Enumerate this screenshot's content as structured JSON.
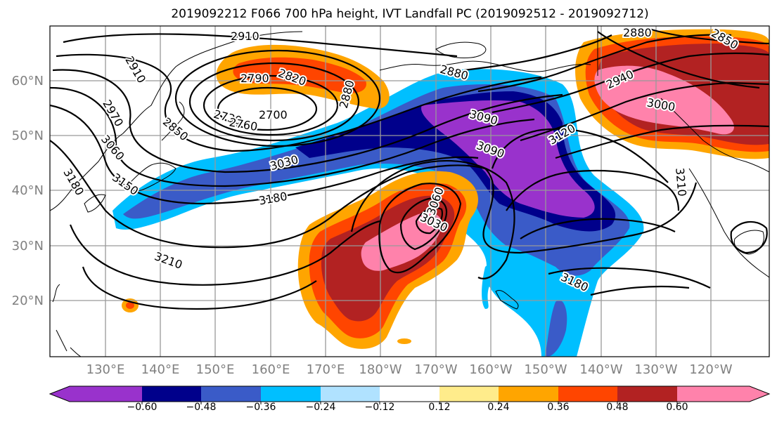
{
  "title": "2019092212 F066 700 hPa height, IVT Landfall PC (2019092512 - 2019092712)",
  "lat_labels": [
    "60°N",
    "50°N",
    "40°N",
    "30°N",
    "20°N"
  ],
  "lon_labels": [
    "130°E",
    "140°E",
    "150°E",
    "160°E",
    "170°E",
    "180°W",
    "170°W",
    "160°W",
    "150°W",
    "140°W",
    "130°W",
    "120°W"
  ],
  "contour_labels": [
    "2910",
    "2910",
    "2970",
    "3060",
    "3150",
    "3180",
    "2850",
    "2790",
    "2820",
    "2730",
    "2760",
    "2700",
    "2880",
    "3030",
    "3180",
    "3210",
    "3060",
    "3030",
    "3090",
    "3090",
    "3120",
    "2880",
    "2850",
    "2940",
    "3000",
    "3210",
    "3180"
  ],
  "colorbar": {
    "tick_labels": [
      "−0.60",
      "−0.48",
      "−0.36",
      "−0.24",
      "−0.12",
      "0.12",
      "0.24",
      "0.36",
      "0.48",
      "0.60"
    ],
    "colors": [
      "#9932CC",
      "#00008B",
      "#3A5BC8",
      "#00BFFF",
      "#B0E2FF",
      "#FFFFFF",
      "#FFEC8B",
      "#FFA500",
      "#FF4500",
      "#B22222",
      "#FF82AB"
    ]
  }
}
